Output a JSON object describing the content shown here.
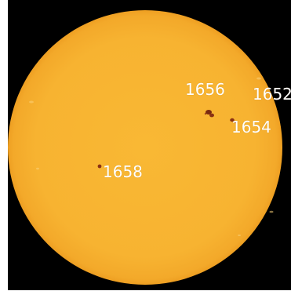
{
  "colors": {
    "background": "#000000",
    "solar_disk": "#f7b331",
    "limb": "#f0a020",
    "sunspot": "#7a2a10",
    "label_text": "#ffffff"
  },
  "sunspot_regions": [
    {
      "number": "1656"
    },
    {
      "number": "1652"
    },
    {
      "number": "1654"
    },
    {
      "number": "1658"
    }
  ]
}
